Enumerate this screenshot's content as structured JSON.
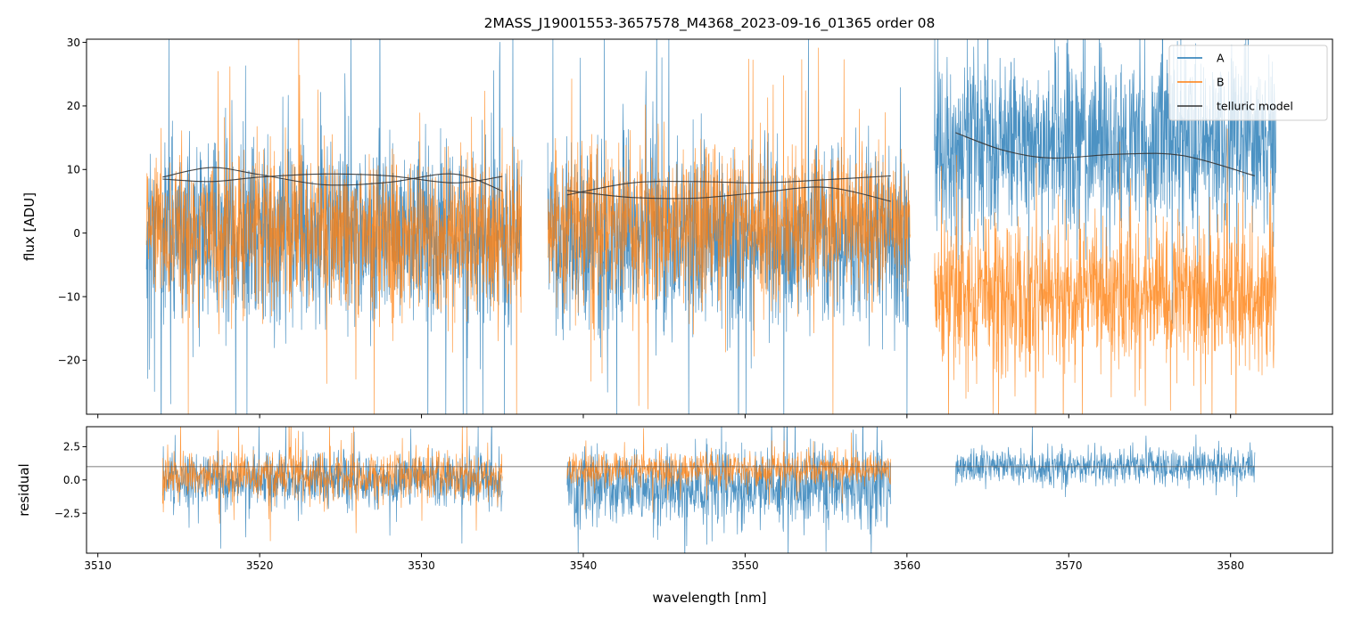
{
  "chart_data": [
    {
      "type": "line",
      "panel": "top",
      "title": "2MASS_J19001553-3657578_M4368_2023-09-16_01365  order 08",
      "xlabel": "",
      "ylabel": "flux [ADU]",
      "xlim": [
        3509.3,
        3586.3
      ],
      "ylim": [
        -28.5,
        30.5
      ],
      "xticks": [
        3510,
        3520,
        3530,
        3540,
        3550,
        3560,
        3570,
        3580
      ],
      "xtick_labels": [
        "",
        "",
        "",
        "",
        "",
        "",
        "",
        ""
      ],
      "yticks": [
        -20,
        -10,
        0,
        10,
        20,
        30
      ],
      "ytick_labels": [
        "−20",
        "−10",
        "0",
        "10",
        "20",
        "30"
      ],
      "legend": {
        "placement": "top-right",
        "entries": [
          "A",
          "B",
          "telluric model"
        ]
      },
      "series": [
        {
          "name": "A",
          "color": "#1f77b4",
          "style": "noisy-line",
          "segments": [
            {
              "x_range": [
                3513.0,
                3536.2
              ],
              "mean": 0.0,
              "spread": 13.0
            },
            {
              "x_range": [
                3537.8,
                3560.2
              ],
              "mean": -1.0,
              "spread": 13.0
            },
            {
              "x_range": [
                3561.7,
                3582.8
              ],
              "mean": 14.0,
              "spread": 13.0
            }
          ]
        },
        {
          "name": "B",
          "color": "#ff7f0e",
          "style": "noisy-line",
          "segments": [
            {
              "x_range": [
                3513.0,
                3536.2
              ],
              "mean": 0.0,
              "spread": 11.0
            },
            {
              "x_range": [
                3537.8,
                3560.2
              ],
              "mean": 1.5,
              "spread": 11.0
            },
            {
              "x_range": [
                3561.7,
                3582.8
              ],
              "mean": -10.0,
              "spread": 10.0
            }
          ]
        },
        {
          "name": "telluric model",
          "color": "#333333",
          "style": "smooth-line",
          "curves": [
            {
              "x": [
                3514,
                3517,
                3520,
                3524,
                3528,
                3532,
                3535
              ],
              "y": [
                8.8,
                10.3,
                9.2,
                7.6,
                8.0,
                9.3,
                6.6
              ]
            },
            {
              "x": [
                3514,
                3517,
                3520,
                3524,
                3528,
                3532,
                3535
              ],
              "y": [
                8.5,
                8.1,
                8.8,
                9.3,
                9.0,
                7.9,
                8.9
              ]
            },
            {
              "x": [
                3539,
                3543,
                3547,
                3551,
                3555,
                3559
              ],
              "y": [
                6.0,
                7.9,
                8.1,
                7.9,
                8.4,
                9.0
              ]
            },
            {
              "x": [
                3539,
                3543,
                3547,
                3551,
                3555,
                3559
              ],
              "y": [
                6.7,
                5.6,
                5.5,
                6.4,
                7.2,
                5.0
              ]
            },
            {
              "x": [
                3563,
                3566,
                3569,
                3573,
                3577,
                3581.5
              ],
              "y": [
                15.8,
                13.0,
                11.8,
                12.4,
                12.2,
                9.0
              ]
            }
          ]
        }
      ]
    },
    {
      "type": "line",
      "panel": "bottom",
      "xlabel": "wavelength [nm]",
      "ylabel": "residual",
      "xlim": [
        3509.3,
        3586.3
      ],
      "ylim": [
        -5.5,
        4.0
      ],
      "xticks": [
        3510,
        3520,
        3530,
        3540,
        3550,
        3560,
        3570,
        3580
      ],
      "xtick_labels": [
        "3510",
        "3520",
        "3530",
        "3540",
        "3550",
        "3560",
        "3570",
        "3580"
      ],
      "yticks": [
        -2.5,
        0.0,
        2.5
      ],
      "ytick_labels": [
        "−2.5",
        "0.0",
        "2.5"
      ],
      "reference_line": 1.0,
      "series": [
        {
          "name": "A",
          "color": "#1f77b4",
          "style": "noisy-line",
          "segments": [
            {
              "x_range": [
                3514.0,
                3535.0
              ],
              "mean": 0.0,
              "spread": 1.9
            },
            {
              "x_range": [
                3539.0,
                3559.0
              ],
              "mean": -0.5,
              "spread": 2.6
            },
            {
              "x_range": [
                3563.0,
                3581.5
              ],
              "mean": 1.0,
              "spread": 1.2
            }
          ]
        },
        {
          "name": "B",
          "color": "#ff7f0e",
          "style": "noisy-line",
          "segments": [
            {
              "x_range": [
                3514.0,
                3535.0
              ],
              "mean": 0.3,
              "spread": 1.6
            },
            {
              "x_range": [
                3539.0,
                3559.0
              ],
              "mean": 0.8,
              "spread": 1.1
            }
          ]
        }
      ]
    }
  ]
}
